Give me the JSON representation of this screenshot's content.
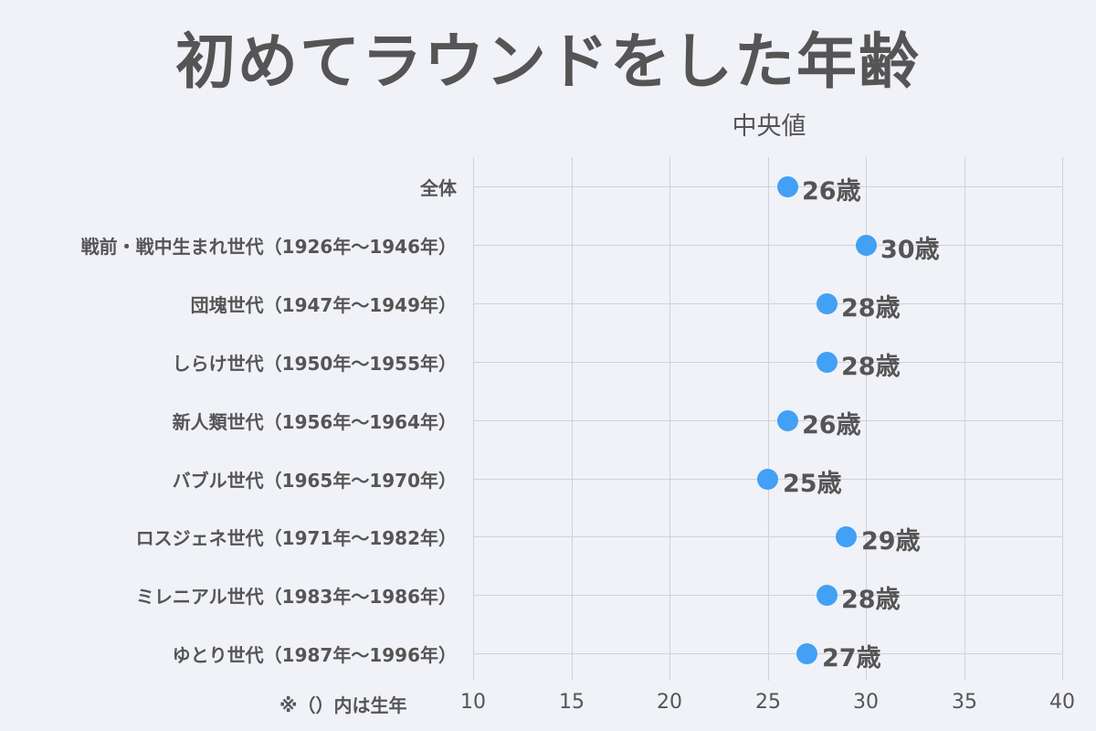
{
  "title": "初めてラウンドをした年齢",
  "subtitle": "中央値",
  "note": "※（）内は生年",
  "colors": {
    "background": "#F0F2F7",
    "dot": "#42A0F5",
    "text": "#555555",
    "grid": "#D0D2D8"
  },
  "chart_data": {
    "type": "scatter",
    "orientation": "horizontal",
    "title": "初めてラウンドをした年齢",
    "subtitle": "中央値",
    "xlabel": "",
    "ylabel": "",
    "xlim": [
      10,
      40
    ],
    "xticks": [
      "10",
      "15",
      "20",
      "25",
      "30",
      "35",
      "40"
    ],
    "grid": true,
    "categories": [
      "全体",
      "戦前・戦中生まれ世代（1926年～1946年）",
      "団塊世代（1947年～1949年）",
      "しらけ世代（1950年～1955年）",
      "新人類世代（1956年～1964年）",
      "バブル世代（1965年～1970年）",
      "ロスジェネ世代（1971年～1982年）",
      "ミレニアル世代（1983年～1986年）",
      "ゆとり世代（1987年～1996年）"
    ],
    "values": [
      26,
      30,
      28,
      28,
      26,
      25,
      29,
      28,
      27
    ],
    "value_labels": [
      "26歳",
      "30歳",
      "28歳",
      "28歳",
      "26歳",
      "25歳",
      "29歳",
      "28歳",
      "27歳"
    ],
    "annotation": "※（）内は生年"
  }
}
